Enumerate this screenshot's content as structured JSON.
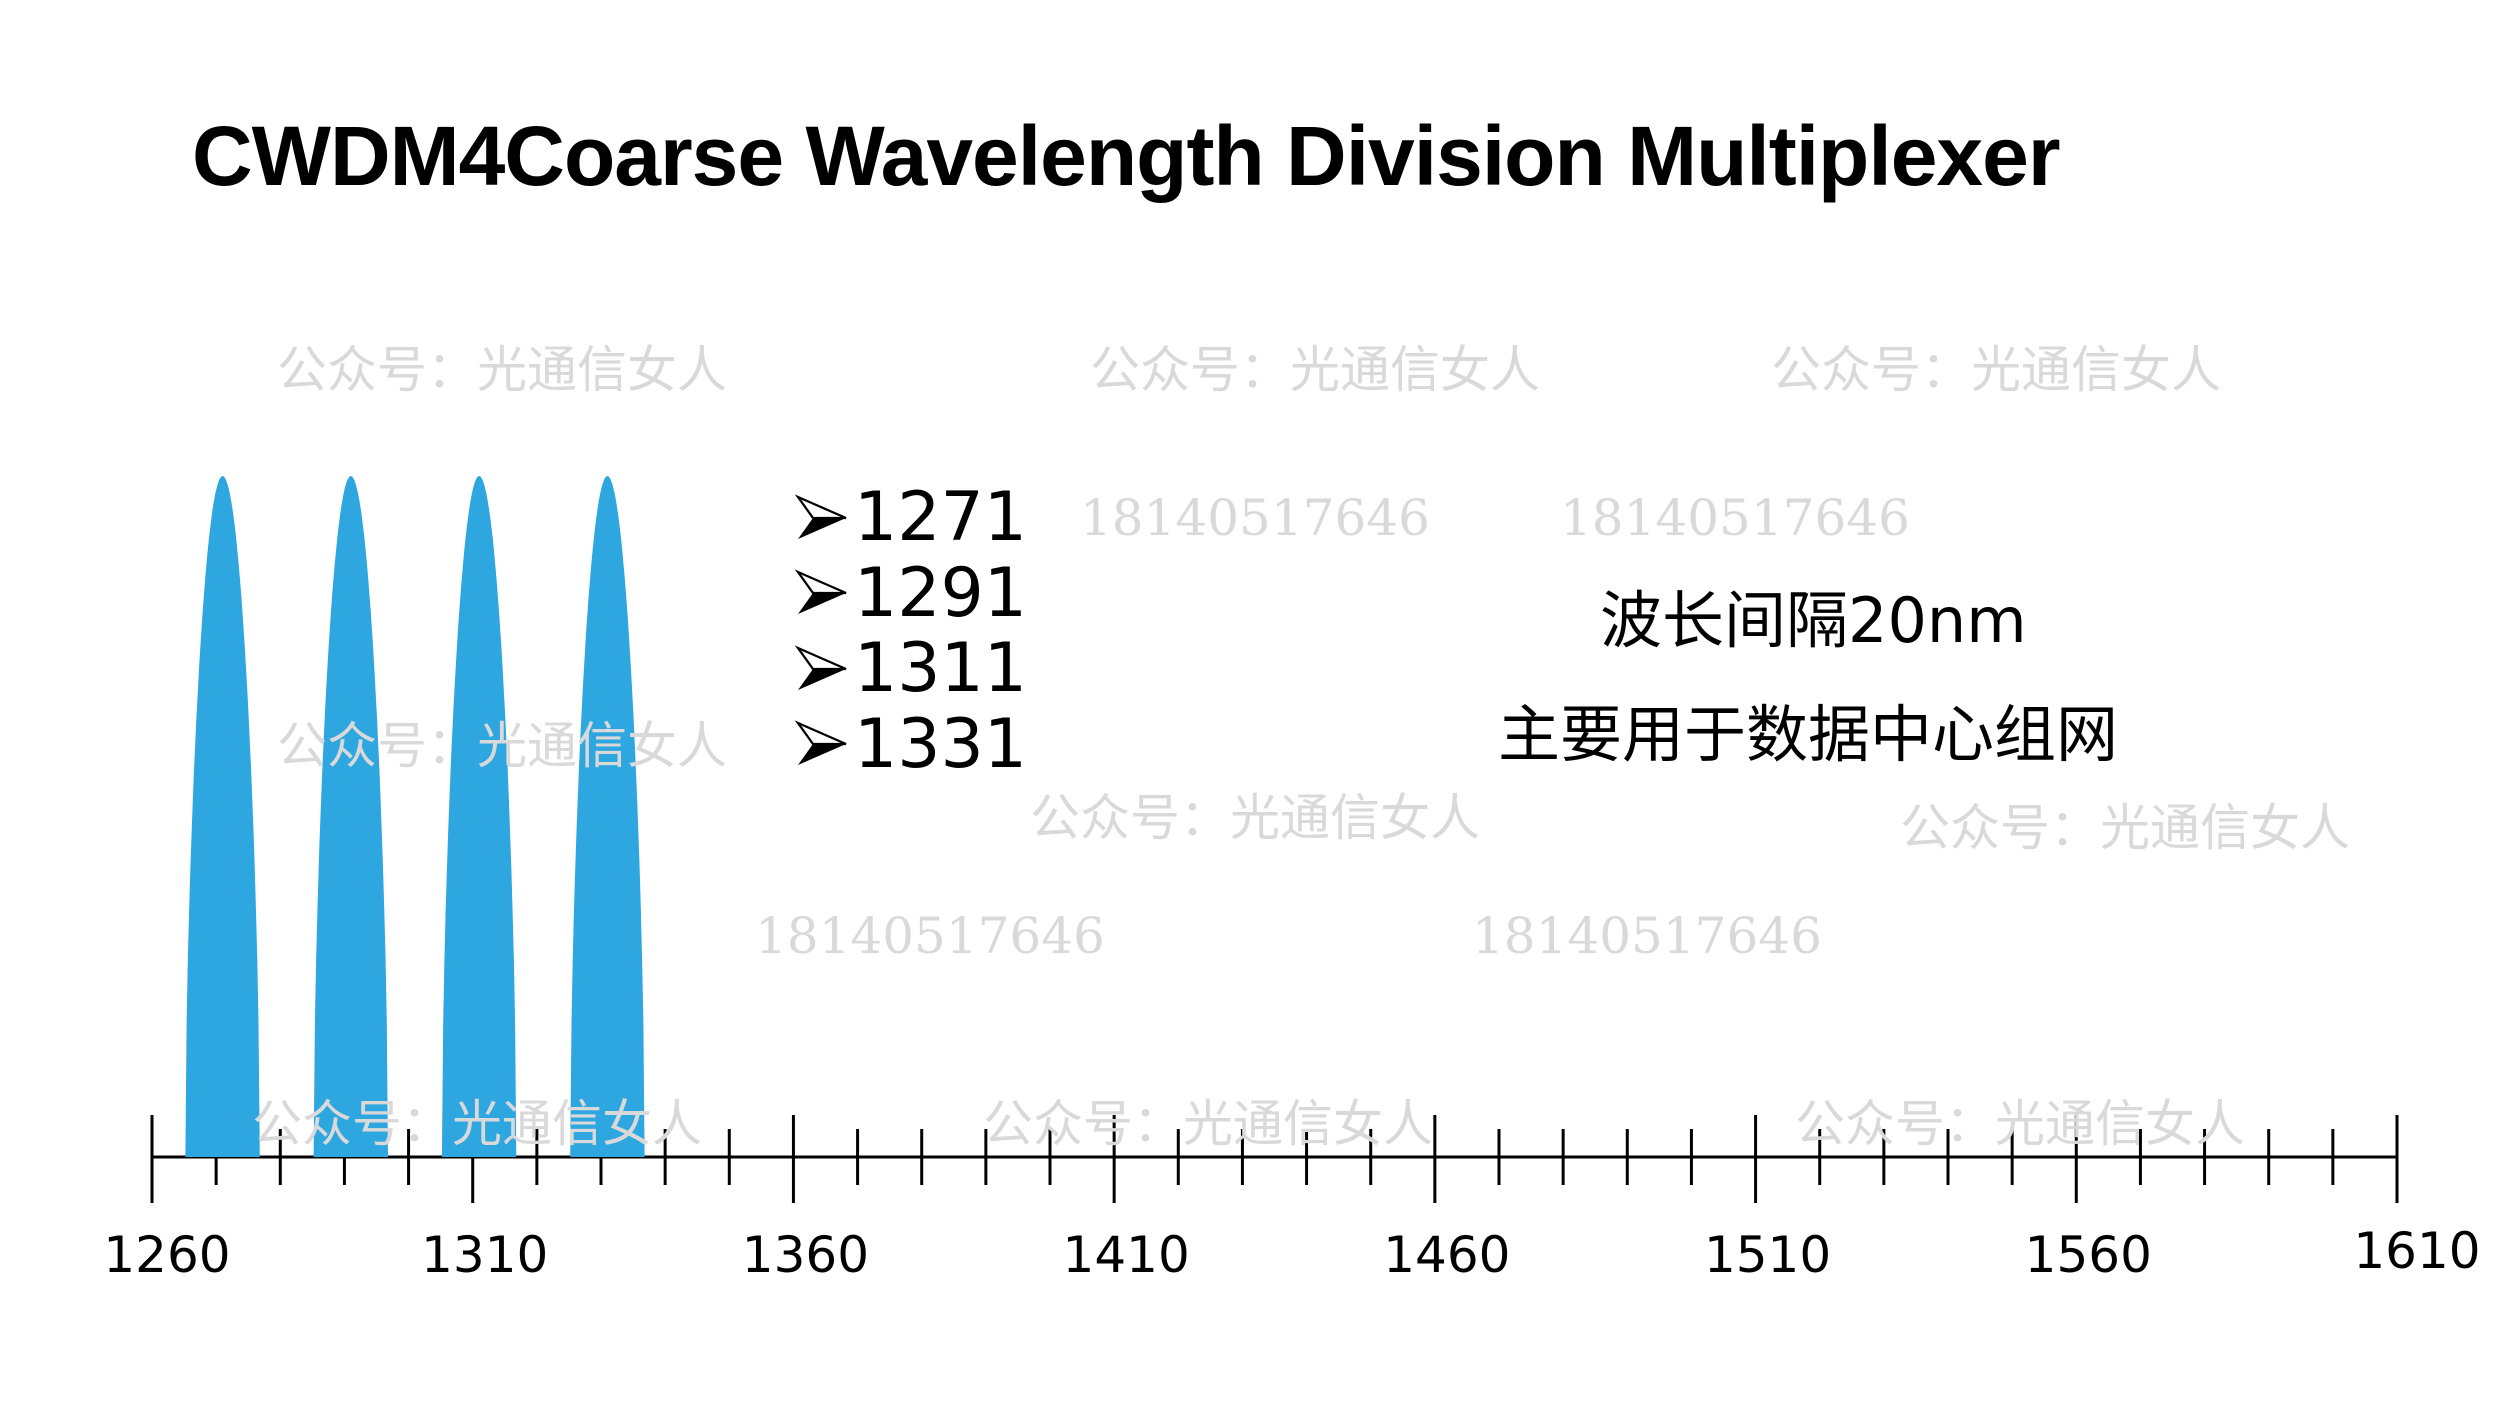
{
  "title": "CWDM4Coarse Wavelength Division Multiplexer",
  "wavelength_list": [
    "1271",
    "1291",
    "1311",
    "1331"
  ],
  "notes": {
    "spacing": "波长间隔20nm",
    "usage": "主要用于数据中心组网"
  },
  "watermarks": {
    "account": "公众号：光通信女人",
    "phone": "18140517646"
  },
  "colors": {
    "peak": "#2ea6df",
    "axis": "#000000",
    "watermark": "#d9d9d9"
  },
  "chart_data": {
    "type": "area",
    "title": "CWDM4Coarse Wavelength Division Multiplexer",
    "xlabel": "",
    "ylabel": "",
    "xlim": [
      1260,
      1610
    ],
    "x_major_ticks": [
      1260,
      1310,
      1360,
      1410,
      1460,
      1510,
      1560,
      1610
    ],
    "x_tick_labels": [
      "1260",
      "1310",
      "1360",
      "1410",
      "1460",
      "1510",
      "1560",
      "1610"
    ],
    "x_minor_step": 10,
    "grid": false,
    "series": [
      {
        "name": "1271",
        "center": 1271,
        "relative_height": 1.0
      },
      {
        "name": "1291",
        "center": 1291,
        "relative_height": 1.0
      },
      {
        "name": "1311",
        "center": 1311,
        "relative_height": 1.0
      },
      {
        "name": "1331",
        "center": 1331,
        "relative_height": 1.0
      }
    ]
  }
}
